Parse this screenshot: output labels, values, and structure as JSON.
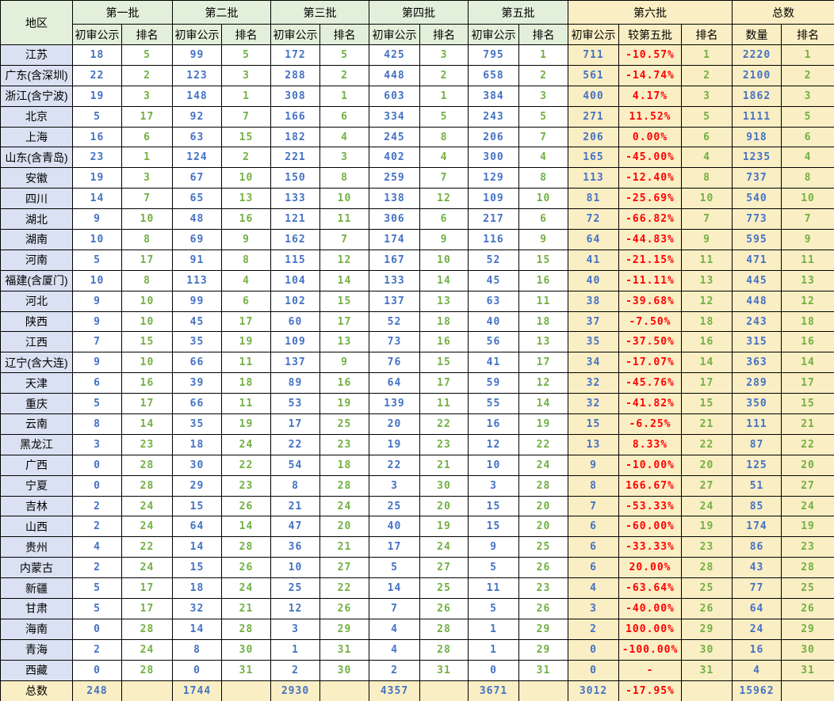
{
  "table": {
    "region_header": "地区",
    "batch_groups": [
      {
        "label": "第一批",
        "columns": [
          "初审公示",
          "排名"
        ]
      },
      {
        "label": "第二批",
        "columns": [
          "初审公示",
          "排名"
        ]
      },
      {
        "label": "第三批",
        "columns": [
          "初审公示",
          "排名"
        ]
      },
      {
        "label": "第四批",
        "columns": [
          "初审公示",
          "排名"
        ]
      },
      {
        "label": "第五批",
        "columns": [
          "初审公示",
          "排名"
        ]
      },
      {
        "label": "第六批",
        "columns": [
          "初审公示",
          "较第五批",
          "排名"
        ]
      },
      {
        "label": "总数",
        "columns": [
          "数量",
          "排名"
        ]
      }
    ],
    "rows": [
      {
        "region": "江苏",
        "values": [
          "18",
          "5",
          "99",
          "5",
          "172",
          "5",
          "425",
          "3",
          "795",
          "1",
          "711",
          "-10.57%",
          "1",
          "2220",
          "1"
        ]
      },
      {
        "region": "广东(含深圳)",
        "values": [
          "22",
          "2",
          "123",
          "3",
          "288",
          "2",
          "448",
          "2",
          "658",
          "2",
          "561",
          "-14.74%",
          "2",
          "2100",
          "2"
        ]
      },
      {
        "region": "浙江(含宁波)",
        "values": [
          "19",
          "3",
          "148",
          "1",
          "308",
          "1",
          "603",
          "1",
          "384",
          "3",
          "400",
          "4.17%",
          "3",
          "1862",
          "3"
        ]
      },
      {
        "region": "北京",
        "values": [
          "5",
          "17",
          "92",
          "7",
          "166",
          "6",
          "334",
          "5",
          "243",
          "5",
          "271",
          "11.52%",
          "5",
          "1111",
          "5"
        ]
      },
      {
        "region": "上海",
        "values": [
          "16",
          "6",
          "63",
          "15",
          "182",
          "4",
          "245",
          "8",
          "206",
          "7",
          "206",
          "0.00%",
          "6",
          "918",
          "6"
        ]
      },
      {
        "region": "山东(含青岛)",
        "values": [
          "23",
          "1",
          "124",
          "2",
          "221",
          "3",
          "402",
          "4",
          "300",
          "4",
          "165",
          "-45.00%",
          "4",
          "1235",
          "4"
        ]
      },
      {
        "region": "安徽",
        "values": [
          "19",
          "3",
          "67",
          "10",
          "150",
          "8",
          "259",
          "7",
          "129",
          "8",
          "113",
          "-12.40%",
          "8",
          "737",
          "8"
        ]
      },
      {
        "region": "四川",
        "values": [
          "14",
          "7",
          "65",
          "13",
          "133",
          "10",
          "138",
          "12",
          "109",
          "10",
          "81",
          "-25.69%",
          "10",
          "540",
          "10"
        ]
      },
      {
        "region": "湖北",
        "values": [
          "9",
          "10",
          "48",
          "16",
          "121",
          "11",
          "306",
          "6",
          "217",
          "6",
          "72",
          "-66.82%",
          "7",
          "773",
          "7"
        ]
      },
      {
        "region": "湖南",
        "values": [
          "10",
          "8",
          "69",
          "9",
          "162",
          "7",
          "174",
          "9",
          "116",
          "9",
          "64",
          "-44.83%",
          "9",
          "595",
          "9"
        ]
      },
      {
        "region": "河南",
        "values": [
          "5",
          "17",
          "91",
          "8",
          "115",
          "12",
          "167",
          "10",
          "52",
          "15",
          "41",
          "-21.15%",
          "11",
          "471",
          "11"
        ]
      },
      {
        "region": "福建(含厦门)",
        "values": [
          "10",
          "8",
          "113",
          "4",
          "104",
          "14",
          "133",
          "14",
          "45",
          "16",
          "40",
          "-11.11%",
          "13",
          "445",
          "13"
        ]
      },
      {
        "region": "河北",
        "values": [
          "9",
          "10",
          "99",
          "6",
          "102",
          "15",
          "137",
          "13",
          "63",
          "11",
          "38",
          "-39.68%",
          "12",
          "448",
          "12"
        ]
      },
      {
        "region": "陕西",
        "values": [
          "9",
          "10",
          "45",
          "17",
          "60",
          "17",
          "52",
          "18",
          "40",
          "18",
          "37",
          "-7.50%",
          "18",
          "243",
          "18"
        ]
      },
      {
        "region": "江西",
        "values": [
          "7",
          "15",
          "35",
          "19",
          "109",
          "13",
          "73",
          "16",
          "56",
          "13",
          "35",
          "-37.50%",
          "16",
          "315",
          "16"
        ]
      },
      {
        "region": "辽宁(含大连)",
        "values": [
          "9",
          "10",
          "66",
          "11",
          "137",
          "9",
          "76",
          "15",
          "41",
          "17",
          "34",
          "-17.07%",
          "14",
          "363",
          "14"
        ]
      },
      {
        "region": "天津",
        "values": [
          "6",
          "16",
          "39",
          "18",
          "89",
          "16",
          "64",
          "17",
          "59",
          "12",
          "32",
          "-45.76%",
          "17",
          "289",
          "17"
        ]
      },
      {
        "region": "重庆",
        "values": [
          "5",
          "17",
          "66",
          "11",
          "53",
          "19",
          "139",
          "11",
          "55",
          "14",
          "32",
          "-41.82%",
          "15",
          "350",
          "15"
        ]
      },
      {
        "region": "云南",
        "values": [
          "8",
          "14",
          "35",
          "19",
          "17",
          "25",
          "20",
          "22",
          "16",
          "19",
          "15",
          "-6.25%",
          "21",
          "111",
          "21"
        ]
      },
      {
        "region": "黑龙江",
        "values": [
          "3",
          "23",
          "18",
          "24",
          "22",
          "23",
          "19",
          "23",
          "12",
          "22",
          "13",
          "8.33%",
          "22",
          "87",
          "22"
        ]
      },
      {
        "region": "广西",
        "values": [
          "0",
          "28",
          "30",
          "22",
          "54",
          "18",
          "22",
          "21",
          "10",
          "24",
          "9",
          "-10.00%",
          "20",
          "125",
          "20"
        ]
      },
      {
        "region": "宁夏",
        "values": [
          "0",
          "28",
          "29",
          "23",
          "8",
          "28",
          "3",
          "30",
          "3",
          "28",
          "8",
          "166.67%",
          "27",
          "51",
          "27"
        ]
      },
      {
        "region": "吉林",
        "values": [
          "2",
          "24",
          "15",
          "26",
          "21",
          "24",
          "25",
          "20",
          "15",
          "20",
          "7",
          "-53.33%",
          "24",
          "85",
          "24"
        ]
      },
      {
        "region": "山西",
        "values": [
          "2",
          "24",
          "64",
          "14",
          "47",
          "20",
          "40",
          "19",
          "15",
          "20",
          "6",
          "-60.00%",
          "19",
          "174",
          "19"
        ]
      },
      {
        "region": "贵州",
        "values": [
          "4",
          "22",
          "14",
          "28",
          "36",
          "21",
          "17",
          "24",
          "9",
          "25",
          "6",
          "-33.33%",
          "23",
          "86",
          "23"
        ]
      },
      {
        "region": "内蒙古",
        "values": [
          "2",
          "24",
          "15",
          "26",
          "10",
          "27",
          "5",
          "27",
          "5",
          "26",
          "6",
          "20.00%",
          "28",
          "43",
          "28"
        ]
      },
      {
        "region": "新疆",
        "values": [
          "5",
          "17",
          "18",
          "24",
          "25",
          "22",
          "14",
          "25",
          "11",
          "23",
          "4",
          "-63.64%",
          "25",
          "77",
          "25"
        ]
      },
      {
        "region": "甘肃",
        "values": [
          "5",
          "17",
          "32",
          "21",
          "12",
          "26",
          "7",
          "26",
          "5",
          "26",
          "3",
          "-40.00%",
          "26",
          "64",
          "26"
        ]
      },
      {
        "region": "海南",
        "values": [
          "0",
          "28",
          "14",
          "28",
          "3",
          "29",
          "4",
          "28",
          "1",
          "29",
          "2",
          "100.00%",
          "29",
          "24",
          "29"
        ]
      },
      {
        "region": "青海",
        "values": [
          "2",
          "24",
          "8",
          "30",
          "1",
          "31",
          "4",
          "28",
          "1",
          "29",
          "0",
          "-100.00%",
          "30",
          "16",
          "30"
        ]
      },
      {
        "region": "西藏",
        "values": [
          "0",
          "28",
          "0",
          "31",
          "2",
          "30",
          "2",
          "31",
          "0",
          "31",
          "0",
          "-",
          "31",
          "4",
          "31"
        ]
      }
    ],
    "total_row": {
      "region": "总数",
      "values": [
        "248",
        "",
        "1744",
        "",
        "2930",
        "",
        "4357",
        "",
        "3671",
        "",
        "3012",
        "-17.95%",
        "",
        "15962",
        ""
      ]
    }
  },
  "colors": {
    "header_green": "#e2efda",
    "header_yellow": "#faeec4",
    "region_blue": "#d9e1f2",
    "highlight_yellow": "#faeec4",
    "count_text": "#4472c4",
    "rank_text": "#72b043",
    "percent_text": "#ff0000",
    "border": "#000000"
  }
}
